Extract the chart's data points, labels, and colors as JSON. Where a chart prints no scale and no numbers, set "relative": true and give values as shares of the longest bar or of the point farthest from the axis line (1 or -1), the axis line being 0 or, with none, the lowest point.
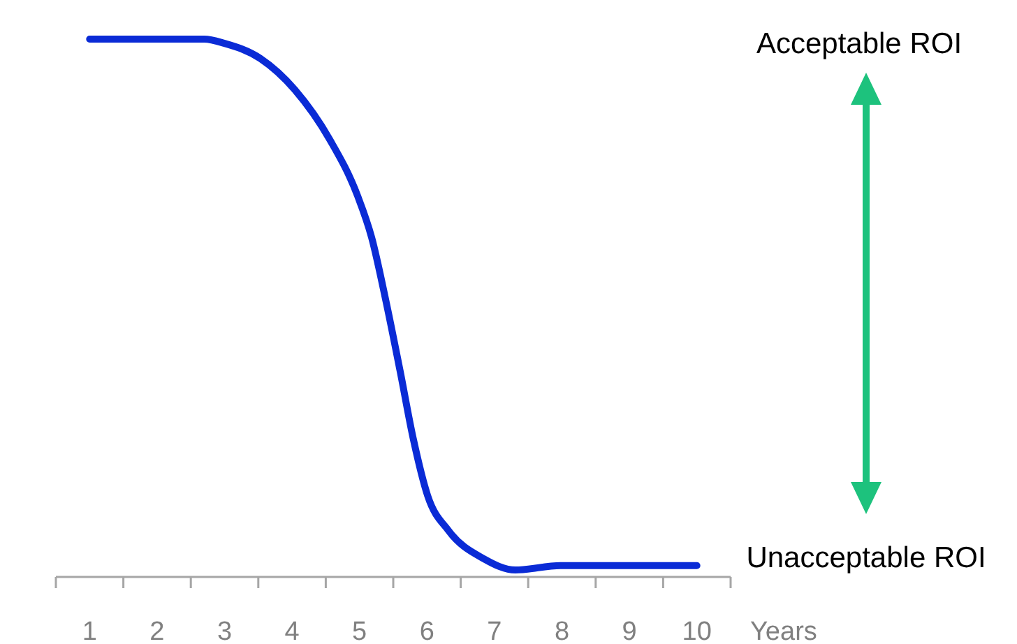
{
  "chart_data": {
    "type": "line",
    "relative": true,
    "xlabel": "Years",
    "xlim": [
      0.5,
      10.5
    ],
    "xticks": [
      {
        "value": 0.5,
        "label": null
      },
      1,
      {
        "value": 1.5,
        "label": null
      },
      2,
      {
        "value": 2.5,
        "label": null
      },
      3,
      {
        "value": 3.5,
        "label": null
      },
      4,
      {
        "value": 4.5,
        "label": null
      },
      5,
      {
        "value": 5.5,
        "label": null
      },
      6,
      {
        "value": 6.5,
        "label": null
      },
      7,
      {
        "value": 7.5,
        "label": null
      },
      8,
      {
        "value": 8.5,
        "label": null
      },
      9,
      {
        "value": 9.5,
        "label": null
      },
      10,
      {
        "value": 10.5,
        "label": null
      }
    ],
    "x": [
      1,
      2,
      2.7,
      3,
      3.53,
      4.04,
      4.56,
      4.97,
      5.18,
      5.39,
      5.6,
      5.8,
      6.01,
      6.32,
      6.84,
      7.31,
      7.98,
      10
    ],
    "series": [
      {
        "color": "#0a2bd6",
        "values": [
          1,
          1,
          1,
          0.992,
          0.964,
          0.906,
          0.813,
          0.709,
          0.631,
          0.514,
          0.384,
          0.255,
          0.151,
          0.086,
          0.034,
          0.013,
          0.021,
          0.021
        ]
      }
    ],
    "marker": "none",
    "line_style": "solid",
    "annotations": [
      "Acceptable ROI",
      "Unacceptable ROI"
    ]
  }
}
